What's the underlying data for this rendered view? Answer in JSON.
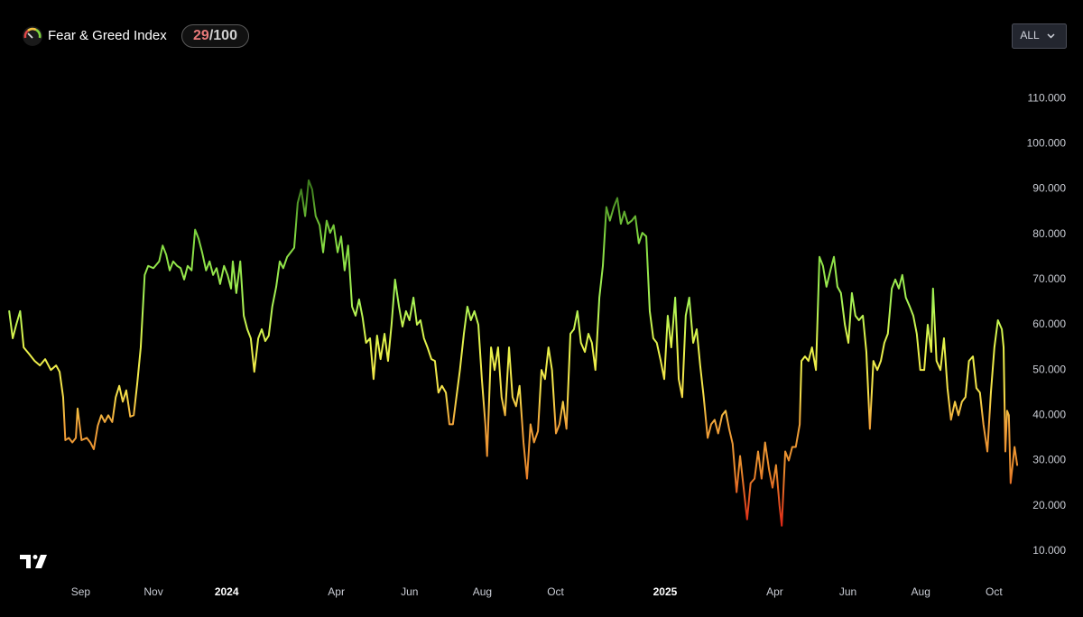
{
  "chart_data": {
    "type": "line",
    "title": "Fear & Greed Index",
    "score": 29,
    "score_max_label": "/100",
    "range_button": "ALL",
    "xlim": [
      2023.483,
      2025.809
    ],
    "ylim": [
      5,
      115
    ],
    "xticks": [
      {
        "value": 2023.667,
        "label": "Sep"
      },
      {
        "value": 2023.833,
        "label": "Nov"
      },
      {
        "value": 2024,
        "label": "2024"
      },
      {
        "value": 2024.25,
        "label": "Apr"
      },
      {
        "value": 2024.417,
        "label": "Jun"
      },
      {
        "value": 2024.583,
        "label": "Aug"
      },
      {
        "value": 2024.75,
        "label": "Oct"
      },
      {
        "value": 2025,
        "label": "2025"
      },
      {
        "value": 2025.25,
        "label": "Apr"
      },
      {
        "value": 2025.417,
        "label": "Jun"
      },
      {
        "value": 2025.583,
        "label": "Aug"
      },
      {
        "value": 2025.75,
        "label": "Oct"
      }
    ],
    "year_ticks": [
      2,
      7
    ],
    "yticks": [
      {
        "value": 10,
        "label": "10.000"
      },
      {
        "value": 20,
        "label": "20.000"
      },
      {
        "value": 30,
        "label": "30.000"
      },
      {
        "value": 40,
        "label": "40.000"
      },
      {
        "value": 50,
        "label": "50.000"
      },
      {
        "value": 60,
        "label": "60.000"
      },
      {
        "value": 70,
        "label": "70.000"
      },
      {
        "value": 80,
        "label": "80.000"
      },
      {
        "value": 90,
        "label": "90.000"
      },
      {
        "value": 100,
        "label": "100.000"
      },
      {
        "value": 110,
        "label": "110.000"
      }
    ],
    "color_stops": [
      {
        "value": 90,
        "color": "#3f7f1e"
      },
      {
        "value": 80,
        "color": "#7fd63f"
      },
      {
        "value": 65,
        "color": "#a6f255"
      },
      {
        "value": 55,
        "color": "#e8f24a"
      },
      {
        "value": 45,
        "color": "#f5e04a"
      },
      {
        "value": 38,
        "color": "#f0a23a"
      },
      {
        "value": 28,
        "color": "#e88a2c"
      },
      {
        "value": 16,
        "color": "#e02a18"
      }
    ],
    "x": [
      2023.504,
      2023.512,
      2023.52,
      2023.529,
      2023.537,
      2023.549,
      2023.562,
      2023.574,
      2023.586,
      2023.599,
      2023.611,
      2023.619,
      2023.627,
      2023.632,
      2023.64,
      2023.648,
      2023.656,
      2023.66,
      2023.669,
      2023.681,
      2023.689,
      2023.697,
      2023.706,
      2023.714,
      2023.722,
      2023.73,
      2023.739,
      2023.747,
      2023.755,
      2023.763,
      2023.771,
      2023.78,
      2023.788,
      2023.796,
      2023.804,
      2023.813,
      2023.821,
      2023.833,
      2023.846,
      2023.854,
      2023.862,
      2023.87,
      2023.878,
      2023.887,
      2023.895,
      2023.903,
      2023.911,
      2023.92,
      2023.928,
      2023.936,
      2023.944,
      2023.953,
      2023.961,
      2023.969,
      2023.977,
      2023.985,
      2023.994,
      2024.002,
      2024.01,
      2024.014,
      2024.022,
      2024.031,
      2024.039,
      2024.047,
      2024.055,
      2024.063,
      2024.072,
      2024.08,
      2024.088,
      2024.096,
      2024.104,
      2024.113,
      2024.121,
      2024.129,
      2024.138,
      2024.146,
      2024.154,
      2024.162,
      2024.17,
      2024.179,
      2024.187,
      2024.195,
      2024.203,
      2024.212,
      2024.22,
      2024.228,
      2024.236,
      2024.244,
      2024.253,
      2024.261,
      2024.269,
      2024.277,
      2024.286,
      2024.294,
      2024.302,
      2024.31,
      2024.318,
      2024.327,
      2024.335,
      2024.343,
      2024.351,
      2024.36,
      2024.368,
      2024.376,
      2024.384,
      2024.393,
      2024.401,
      2024.409,
      2024.417,
      2024.426,
      2024.434,
      2024.442,
      2024.45,
      2024.458,
      2024.467,
      2024.475,
      2024.483,
      2024.491,
      2024.5,
      2024.508,
      2024.516,
      2024.524,
      2024.532,
      2024.541,
      2024.549,
      2024.557,
      2024.565,
      2024.574,
      2024.582,
      2024.59,
      2024.594,
      2024.603,
      2024.611,
      2024.619,
      2024.627,
      2024.635,
      2024.644,
      2024.652,
      2024.66,
      2024.668,
      2024.677,
      2024.685,
      2024.693,
      2024.701,
      2024.71,
      2024.718,
      2024.726,
      2024.734,
      2024.742,
      2024.751,
      2024.759,
      2024.767,
      2024.775,
      2024.784,
      2024.792,
      2024.8,
      2024.808,
      2024.817,
      2024.825,
      2024.833,
      2024.841,
      2024.85,
      2024.858,
      2024.866,
      2024.874,
      2024.883,
      2024.891,
      2024.899,
      2024.907,
      2024.915,
      2024.924,
      2024.932,
      2024.94,
      2024.948,
      2024.957,
      2024.965,
      2024.973,
      2024.981,
      2024.99,
      2024.998,
      2025.006,
      2025.014,
      2025.023,
      2025.031,
      2025.039,
      2025.047,
      2025.055,
      2025.064,
      2025.072,
      2025.08,
      2025.088,
      2025.097,
      2025.105,
      2025.113,
      2025.121,
      2025.13,
      2025.138,
      2025.146,
      2025.154,
      2025.163,
      2025.171,
      2025.179,
      2025.187,
      2025.195,
      2025.204,
      2025.212,
      2025.22,
      2025.228,
      2025.237,
      2025.245,
      2025.253,
      2025.261,
      2025.266,
      2025.274,
      2025.282,
      2025.29,
      2025.298,
      2025.307,
      2025.311,
      2025.319,
      2025.327,
      2025.335,
      2025.344,
      2025.352,
      2025.36,
      2025.368,
      2025.377,
      2025.385,
      2025.393,
      2025.401,
      2025.41,
      2025.418,
      2025.426,
      2025.434,
      2025.442,
      2025.451,
      2025.459,
      2025.467,
      2025.475,
      2025.484,
      2025.492,
      2025.5,
      2025.508,
      2025.517,
      2025.525,
      2025.533,
      2025.541,
      2025.549,
      2025.558,
      2025.566,
      2025.574,
      2025.582,
      2025.591,
      2025.599,
      2025.607,
      2025.611,
      2025.619,
      2025.628,
      2025.636,
      2025.644,
      2025.652,
      2025.661,
      2025.669,
      2025.677,
      2025.685,
      2025.693,
      2025.702,
      2025.71,
      2025.718,
      2025.726,
      2025.735,
      2025.743,
      2025.751,
      2025.759,
      2025.768,
      2025.772,
      2025.776,
      2025.78,
      2025.784,
      2025.788,
      2025.797,
      2025.803
    ],
    "values": [
      63,
      57,
      60,
      63,
      55,
      53.6,
      52,
      51,
      52.4,
      50,
      51,
      49.6,
      44,
      34.5,
      35,
      34,
      35,
      41.5,
      34.5,
      35,
      34,
      32.5,
      37.7,
      40,
      38.5,
      40,
      38.5,
      44,
      46.5,
      43,
      45.5,
      39.7,
      40,
      47,
      55,
      71,
      73,
      72.5,
      74,
      77.5,
      75.5,
      72,
      74,
      73,
      72.5,
      70,
      73,
      72,
      81,
      79,
      76,
      72,
      74,
      71,
      72.5,
      69,
      73,
      71,
      68,
      74,
      67,
      74,
      62,
      59,
      57,
      49.6,
      57,
      59,
      56.4,
      57.6,
      64,
      68.4,
      74,
      72.5,
      75,
      76,
      77,
      86.9,
      89.9,
      84,
      91.9,
      89.9,
      84,
      82,
      76,
      83,
      80.3,
      82,
      76,
      79.5,
      72,
      77.5,
      64,
      62,
      65.6,
      61.6,
      56,
      57,
      48,
      57.6,
      52.4,
      58,
      52,
      60,
      70,
      64,
      59.6,
      63,
      61,
      66,
      60,
      61,
      57,
      55,
      52.4,
      52,
      45,
      46.5,
      45,
      38,
      38,
      44,
      50,
      58,
      64,
      61,
      63,
      60,
      48,
      38,
      31,
      55,
      50,
      55,
      44,
      40,
      55,
      44,
      42,
      46.5,
      34,
      26,
      38,
      34,
      36.5,
      50,
      48,
      55,
      50,
      36,
      38,
      43,
      37,
      58,
      59,
      63,
      56,
      54,
      58,
      56,
      50,
      66,
      73,
      86,
      83,
      86,
      88,
      82.3,
      85,
      82.3,
      83,
      84,
      78,
      80.3,
      79.5,
      63,
      57,
      56,
      52,
      48,
      62,
      55,
      66,
      48,
      44,
      62,
      66,
      56,
      59,
      51,
      44,
      35,
      38,
      39,
      36,
      40,
      41,
      37,
      33.7,
      23,
      31,
      24,
      17,
      25,
      26,
      32,
      26,
      34,
      28,
      24,
      29,
      20,
      15.6,
      32,
      30,
      33,
      33,
      38,
      52,
      53,
      52,
      55,
      50,
      75,
      73,
      68.4,
      72,
      75,
      68.4,
      67,
      60,
      56,
      67,
      62,
      61,
      62,
      54,
      37,
      52,
      50,
      52,
      56,
      58,
      68,
      70,
      68,
      71,
      66,
      64,
      62,
      58,
      50,
      50,
      60,
      54,
      68,
      52,
      50,
      57,
      46,
      39,
      43,
      40,
      43,
      44,
      52,
      53,
      46,
      45,
      38,
      32,
      45,
      55,
      61,
      59,
      55,
      32,
      41,
      40,
      25,
      33,
      29
    ]
  }
}
